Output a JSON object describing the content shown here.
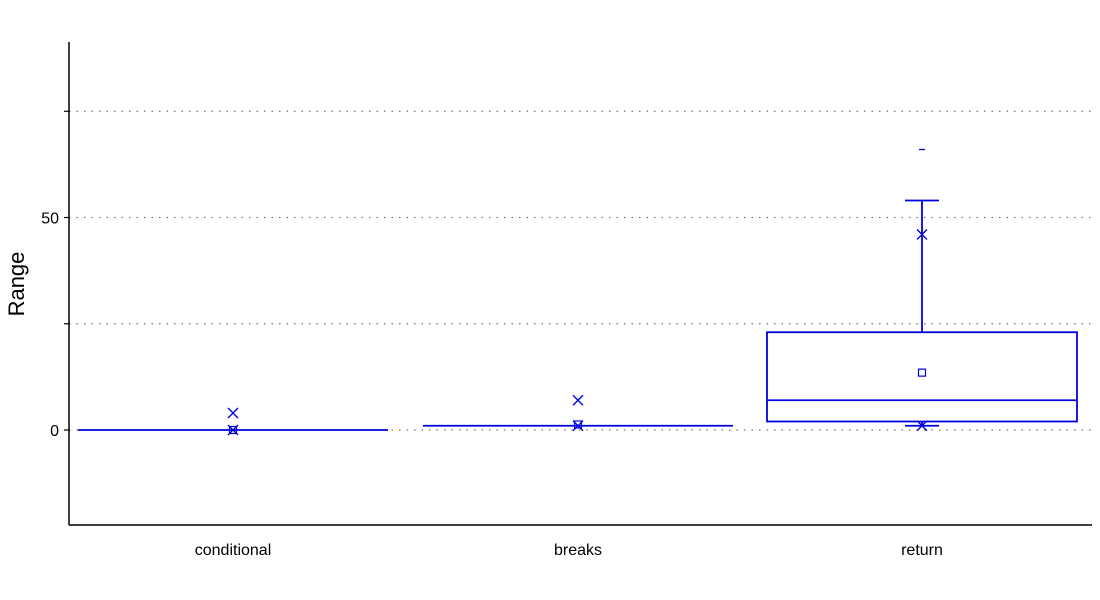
{
  "chart_data": {
    "type": "boxplot",
    "title": "",
    "xlabel": "",
    "ylabel": "Range",
    "ylim": [
      -22,
      92
    ],
    "yticks": [
      0,
      50
    ],
    "gridlines": [
      0,
      25,
      50,
      75
    ],
    "grid": "horizontal dotted",
    "colors": {
      "box": "#0000dd",
      "axis": "#000000",
      "grid": "#777777"
    },
    "categories": [
      "conditional",
      "breaks",
      "return"
    ],
    "boxes": [
      {
        "category": "conditional",
        "whisker_low": 0,
        "q1": 0,
        "median": 0,
        "q3": 0,
        "whisker_high": 0,
        "mean": 0,
        "min_marker": 0,
        "max_marker": 4,
        "outliers": []
      },
      {
        "category": "breaks",
        "whisker_low": 1,
        "q1": 1,
        "median": 1,
        "q3": 1,
        "whisker_high": 1,
        "mean": 1.3,
        "min_marker": 1,
        "max_marker": 7,
        "outliers": []
      },
      {
        "category": "return",
        "whisker_low": 1,
        "q1": 2,
        "median": 7,
        "q3": 23,
        "whisker_high": 54,
        "mean": 13.5,
        "min_marker": 1,
        "max_marker": 46,
        "outliers": [
          66
        ]
      }
    ]
  }
}
